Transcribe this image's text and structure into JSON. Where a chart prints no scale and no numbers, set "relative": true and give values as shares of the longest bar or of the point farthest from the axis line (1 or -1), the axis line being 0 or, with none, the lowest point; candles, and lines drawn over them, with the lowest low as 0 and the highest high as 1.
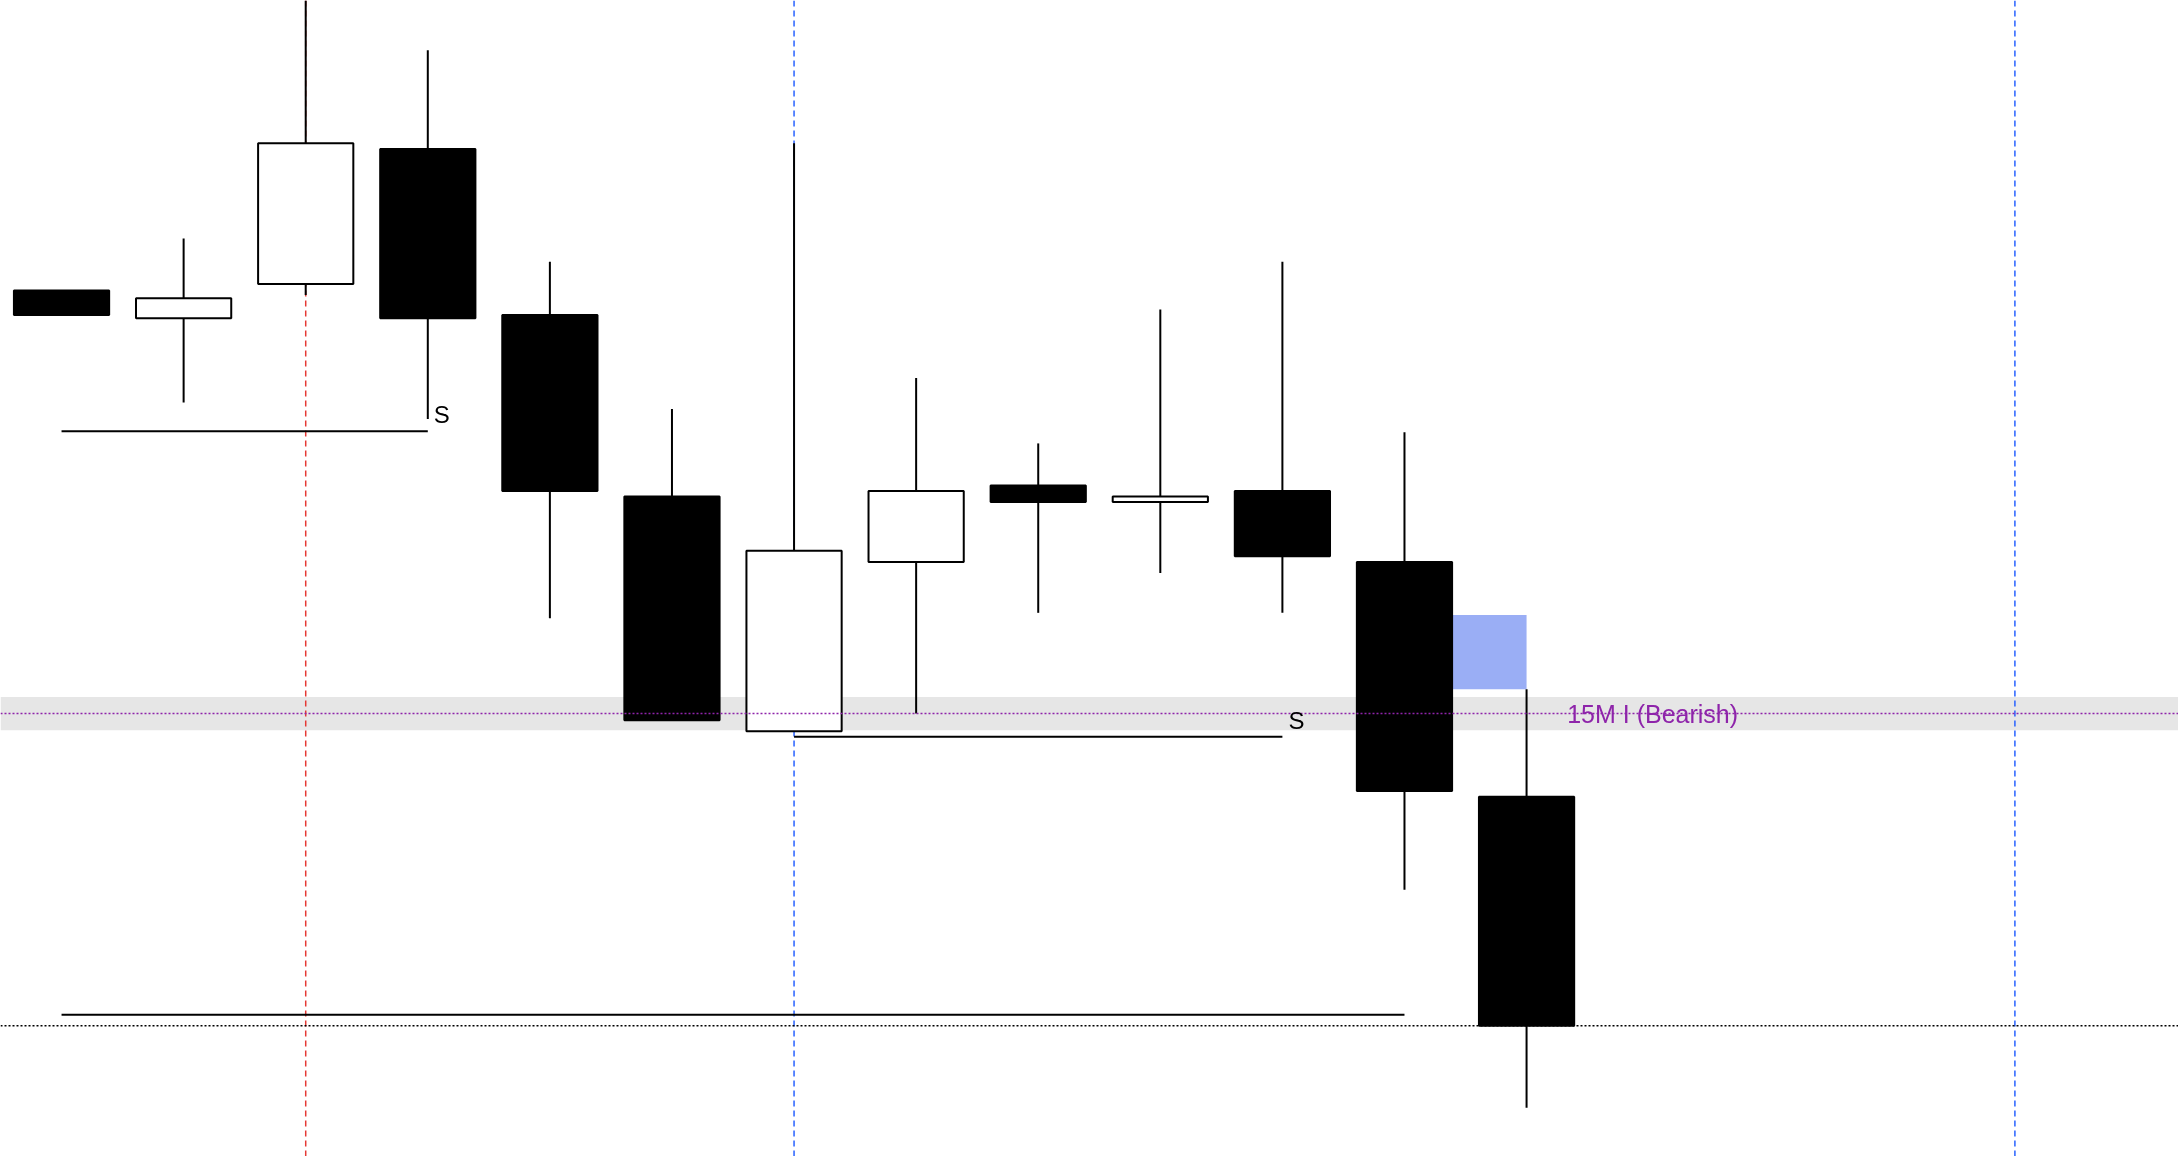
{
  "chart_data": {
    "type": "candlestick",
    "relative": true,
    "grid": false,
    "categories": [
      null,
      null,
      null,
      null,
      null,
      null,
      null,
      null,
      null,
      null,
      null,
      null,
      null
    ],
    "ohlc": [
      [
        0.738,
        0.738,
        0.716,
        0.716
      ],
      [
        0.713,
        0.785,
        0.637,
        0.731
      ],
      [
        0.744,
        1,
        0.734,
        0.871
      ],
      [
        0.866,
        0.955,
        0.622,
        0.713
      ],
      [
        0.716,
        0.764,
        0.442,
        0.557
      ],
      [
        0.552,
        0.631,
        0.35,
        0.35
      ],
      [
        0.34,
        0.871,
        0.34,
        0.503
      ],
      [
        0.493,
        0.659,
        0.356,
        0.557
      ],
      [
        0.562,
        0.6,
        0.447,
        0.547
      ],
      [
        0.547,
        0.721,
        0.483,
        0.552
      ],
      [
        0.557,
        0.764,
        0.447,
        0.498
      ],
      [
        0.493,
        0.61,
        0.197,
        0.286
      ],
      [
        0.281,
        0.378,
        0,
        0.074
      ]
    ],
    "series": [
      {
        "type": "line",
        "name": "S",
        "color": "#000000",
        "values": [
          0.611,
          0.611,
          0.611,
          0.611,
          null,
          null,
          null,
          null,
          null,
          null,
          null,
          null,
          null
        ]
      },
      {
        "type": "line",
        "name": "S",
        "color": "#000000",
        "values": [
          null,
          null,
          null,
          null,
          null,
          null,
          0.335,
          0.335,
          0.335,
          0.335,
          0.335,
          null,
          null
        ]
      },
      {
        "type": "line",
        "color": "#000000",
        "values": [
          0.084,
          0.084,
          0.084,
          0.084,
          0.084,
          0.084,
          0.084,
          0.084,
          0.084,
          0.084,
          0.084,
          0.084,
          null
        ]
      },
      {
        "type": "bar",
        "color": "#9aaef5",
        "values": [
          null,
          null,
          null,
          null,
          null,
          null,
          null,
          null,
          null,
          null,
          null,
          null,
          0.067
        ],
        "base": [
          null,
          null,
          null,
          null,
          null,
          null,
          null,
          null,
          null,
          null,
          null,
          null,
          0.378
        ]
      }
    ],
    "ref_lines": [
      {
        "axis": "y",
        "value": 0.356,
        "label": "15M I (Bearish)",
        "color": "#8e24aa",
        "line_style": "dotted"
      },
      {
        "axis": "y",
        "value": 0.074,
        "color": "#000000",
        "line_style": "dotted"
      }
    ],
    "bands": [
      {
        "axis": "y",
        "from": 0.341,
        "to": 0.371,
        "color": "#e6e6e6"
      }
    ]
  }
}
